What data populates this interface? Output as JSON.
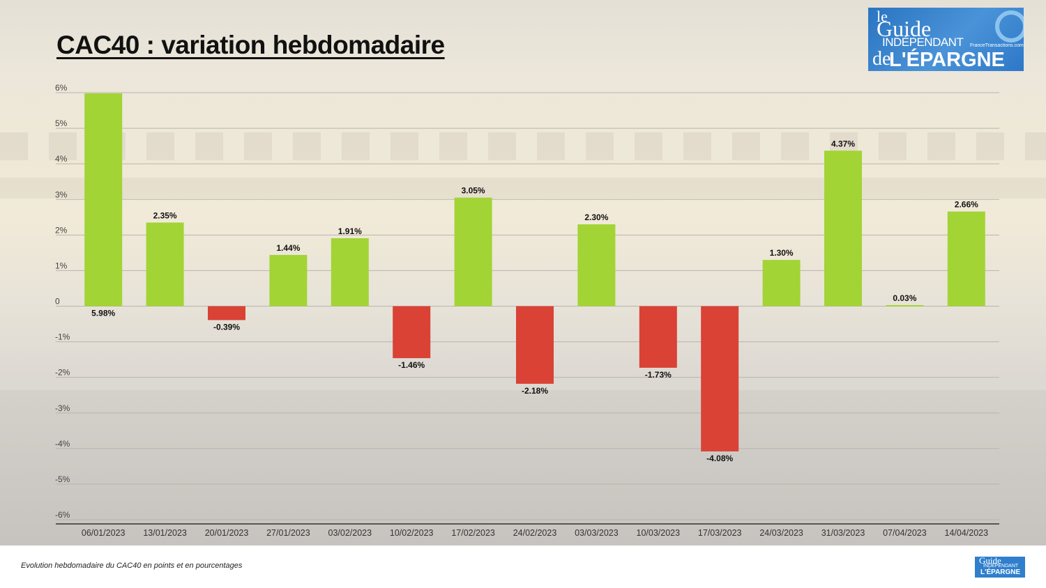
{
  "header": {
    "title": "CAC40 : variation hebdomadaire"
  },
  "logo": {
    "line1": "le",
    "line2": "Guide",
    "line3": "INDÉPENDANT",
    "line4": "de",
    "line5": "L'ÉPARGNE",
    "subtitle": "FranceTransactions.com"
  },
  "footer": {
    "caption": "Evolution hebdomadaire du CAC40 en points et en pourcentages"
  },
  "colors": {
    "positive": "#a2d435",
    "negative": "#d94235",
    "gridline": "#b8b5ae",
    "axis": "#333333"
  },
  "chart_data": {
    "type": "bar",
    "title": "CAC40 : variation hebdomadaire",
    "categories": [
      "06/01/2023",
      "13/01/2023",
      "20/01/2023",
      "27/01/2023",
      "03/02/2023",
      "10/02/2023",
      "17/02/2023",
      "24/02/2023",
      "03/03/2023",
      "10/03/2023",
      "17/03/2023",
      "24/03/2023",
      "31/03/2023",
      "07/04/2023",
      "14/04/2023"
    ],
    "values": [
      5.98,
      2.35,
      -0.39,
      1.44,
      1.91,
      -1.46,
      3.05,
      -2.18,
      2.3,
      -1.73,
      -4.08,
      1.3,
      4.37,
      0.03,
      2.66
    ],
    "data_labels": [
      "5.98%",
      "2.35%",
      "-0.39%",
      "1.44%",
      "1.91%",
      "-1.46%",
      "3.05%",
      "-2.18%",
      "2.30%",
      "-1.73%",
      "-4.08%",
      "1.30%",
      "4.37%",
      "0.03%",
      "2.66%"
    ],
    "y_ticks": [
      6,
      5,
      4,
      3,
      2,
      1,
      0,
      -1,
      -2,
      -3,
      -4,
      -5,
      -6
    ],
    "y_tick_labels": [
      "6%",
      "5%",
      "4%",
      "3%",
      "2%",
      "1%",
      "0",
      "-1%",
      "-2%",
      "-3%",
      "-4%",
      "-5%",
      "-6%"
    ],
    "ylim": [
      -6,
      6
    ],
    "xlabel": "",
    "ylabel": "",
    "grid": true,
    "legend": "none"
  }
}
